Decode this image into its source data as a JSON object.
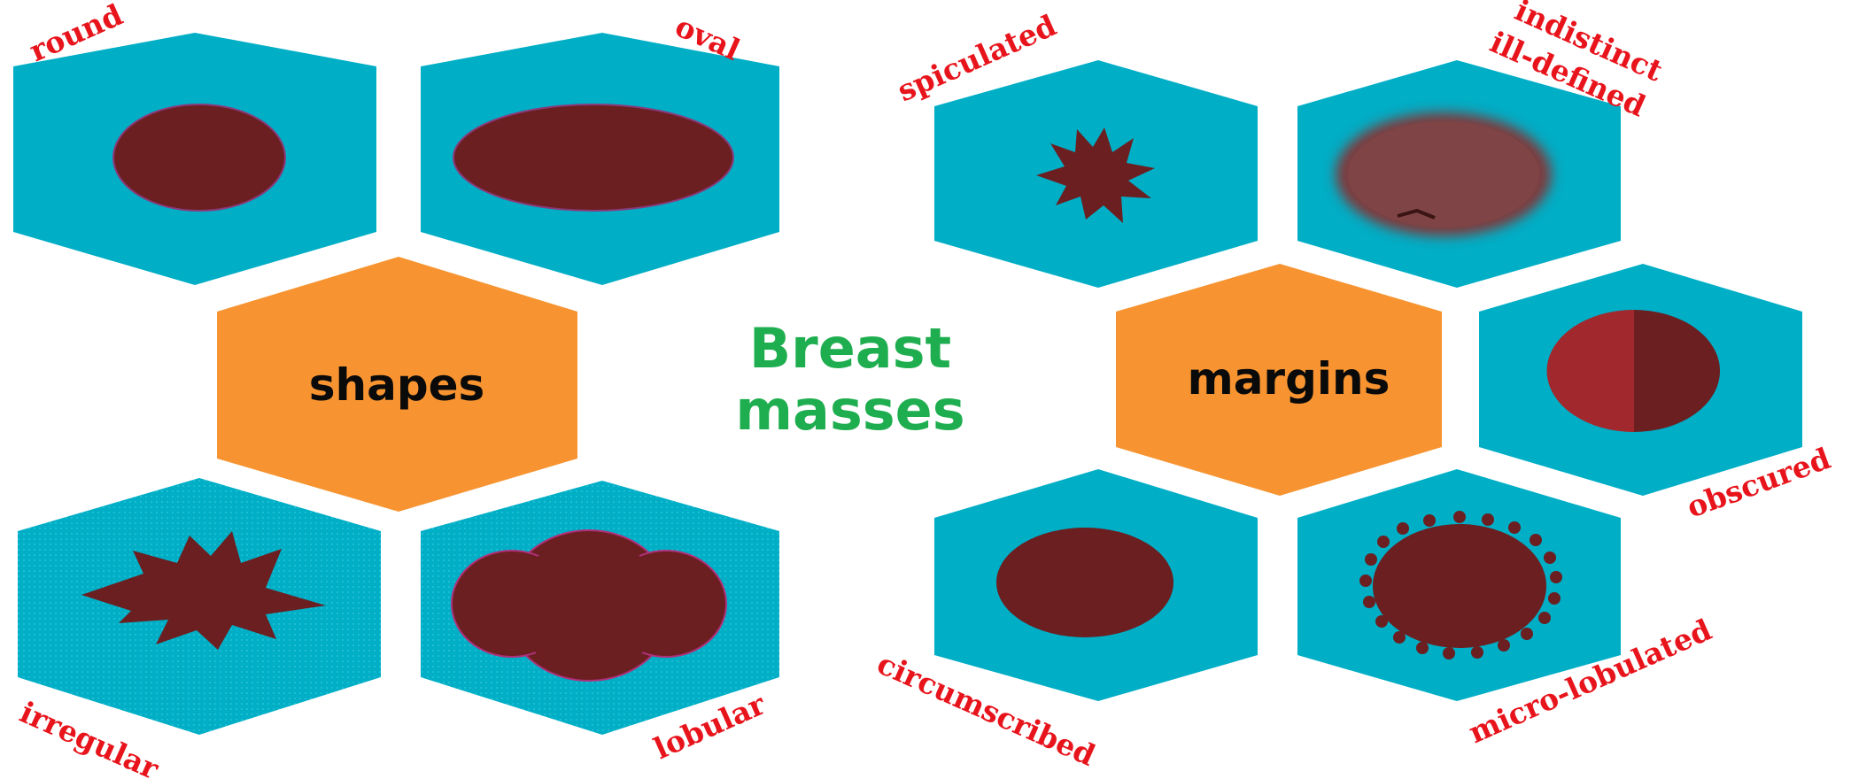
{
  "colors": {
    "hex_teal": "#00aec6",
    "hex_orange": "#f79431",
    "mass": "#6b1f21",
    "mass_light": "#a1292e",
    "label_red": "#e8141c",
    "title_green": "#1fae4f",
    "text_dark": "#0a0a0a"
  },
  "title": {
    "line1": "Breast",
    "line2": "masses"
  },
  "groups": {
    "shapes": {
      "label": "shapes",
      "items": [
        {
          "label": "round",
          "icon": "round-mass-icon"
        },
        {
          "label": "oval",
          "icon": "oval-mass-icon"
        },
        {
          "label": "irregular",
          "icon": "irregular-mass-icon"
        },
        {
          "label": "lobular",
          "icon": "lobular-mass-icon"
        }
      ]
    },
    "margins": {
      "label": "margins",
      "items": [
        {
          "label": "spiculated",
          "icon": "spiculated-mass-icon"
        },
        {
          "label_line1": "indistinct",
          "label_line2": "ill-defined",
          "icon": "indistinct-mass-icon"
        },
        {
          "label": "obscured",
          "icon": "obscured-mass-icon"
        },
        {
          "label": "circumscribed",
          "icon": "circumscribed-mass-icon"
        },
        {
          "label": "micro-lobulated",
          "icon": "microlobulated-mass-icon"
        }
      ]
    }
  }
}
